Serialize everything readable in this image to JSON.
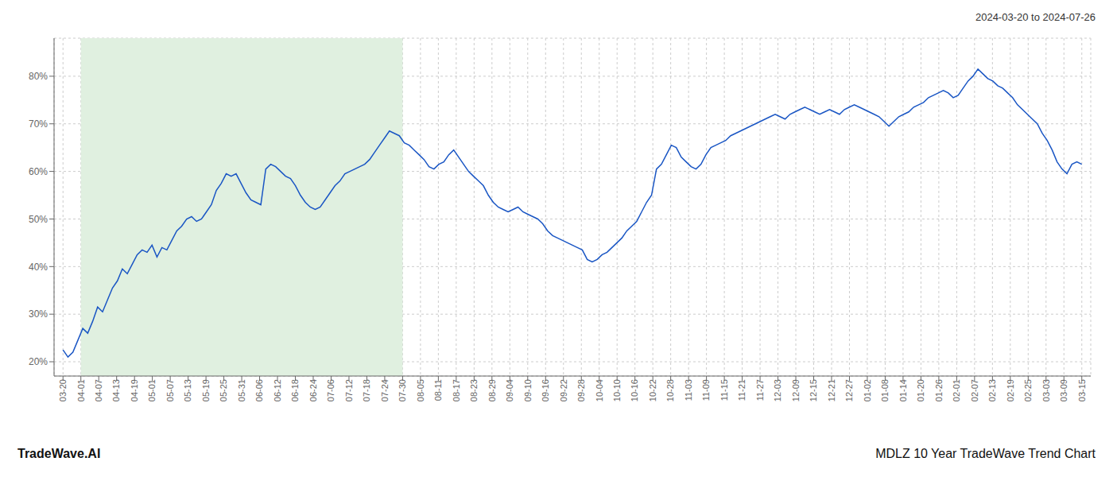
{
  "chart_data": {
    "type": "line",
    "annotations": [
      "2024-03-20 to 2024-07-26",
      "TradeWave.AI",
      "MDLZ 10 Year TradeWave Trend Chart"
    ],
    "color": "#1a56c4",
    "grid": true,
    "spans": [
      {
        "x": [
          1,
          19
        ],
        "color": "#e0f0e0"
      }
    ],
    "xlim": [
      -0.5,
      57.5
    ],
    "xticks": [
      {
        "value": 0,
        "label": "03-20"
      },
      {
        "value": 1,
        "label": "04-01"
      },
      {
        "value": 2,
        "label": "04-07"
      },
      {
        "value": 3,
        "label": "04-13"
      },
      {
        "value": 4,
        "label": "04-19"
      },
      {
        "value": 5,
        "label": "05-01"
      },
      {
        "value": 6,
        "label": "05-07"
      },
      {
        "value": 7,
        "label": "05-13"
      },
      {
        "value": 8,
        "label": "05-19"
      },
      {
        "value": 9,
        "label": "05-25"
      },
      {
        "value": 10,
        "label": "05-31"
      },
      {
        "value": 11,
        "label": "06-06"
      },
      {
        "value": 12,
        "label": "06-12"
      },
      {
        "value": 13,
        "label": "06-18"
      },
      {
        "value": 14,
        "label": "06-24"
      },
      {
        "value": 15,
        "label": "07-06"
      },
      {
        "value": 16,
        "label": "07-12"
      },
      {
        "value": 17,
        "label": "07-18"
      },
      {
        "value": 18,
        "label": "07-24"
      },
      {
        "value": 19,
        "label": "07-30"
      },
      {
        "value": 20,
        "label": "08-05"
      },
      {
        "value": 21,
        "label": "08-11"
      },
      {
        "value": 22,
        "label": "08-17"
      },
      {
        "value": 23,
        "label": "08-23"
      },
      {
        "value": 24,
        "label": "08-29"
      },
      {
        "value": 25,
        "label": "09-04"
      },
      {
        "value": 26,
        "label": "09-10"
      },
      {
        "value": 27,
        "label": "09-16"
      },
      {
        "value": 28,
        "label": "09-22"
      },
      {
        "value": 29,
        "label": "09-28"
      },
      {
        "value": 30,
        "label": "10-04"
      },
      {
        "value": 31,
        "label": "10-10"
      },
      {
        "value": 32,
        "label": "10-16"
      },
      {
        "value": 33,
        "label": "10-22"
      },
      {
        "value": 34,
        "label": "10-28"
      },
      {
        "value": 35,
        "label": "11-03"
      },
      {
        "value": 36,
        "label": "11-09"
      },
      {
        "value": 37,
        "label": "11-15"
      },
      {
        "value": 38,
        "label": "11-21"
      },
      {
        "value": 39,
        "label": "11-27"
      },
      {
        "value": 40,
        "label": "12-03"
      },
      {
        "value": 41,
        "label": "12-09"
      },
      {
        "value": 42,
        "label": "12-15"
      },
      {
        "value": 43,
        "label": "12-21"
      },
      {
        "value": 44,
        "label": "12-27"
      },
      {
        "value": 45,
        "label": "01-02"
      },
      {
        "value": 46,
        "label": "01-08"
      },
      {
        "value": 47,
        "label": "01-14"
      },
      {
        "value": 48,
        "label": "01-20"
      },
      {
        "value": 49,
        "label": "01-26"
      },
      {
        "value": 50,
        "label": "02-01"
      },
      {
        "value": 51,
        "label": "02-07"
      },
      {
        "value": 52,
        "label": "02-13"
      },
      {
        "value": 53,
        "label": "02-19"
      },
      {
        "value": 54,
        "label": "02-25"
      },
      {
        "value": 55,
        "label": "03-03"
      },
      {
        "value": 56,
        "label": "03-09"
      },
      {
        "value": 57,
        "label": "03-15"
      }
    ],
    "ylim": [
      17,
      88
    ],
    "yticks": [
      {
        "value": 20,
        "label": "20%"
      },
      {
        "value": 30,
        "label": "30%"
      },
      {
        "value": 40,
        "label": "40%"
      },
      {
        "value": 50,
        "label": "50%"
      },
      {
        "value": 60,
        "label": "60%"
      },
      {
        "value": 70,
        "label": "70%"
      },
      {
        "value": 80,
        "label": "80%"
      }
    ],
    "x": [
      0,
      0.2767,
      0.5534,
      0.8301,
      1.1068,
      1.3835,
      1.6602,
      1.9369,
      2.2136,
      2.4903,
      2.767,
      3.0437,
      3.3204,
      3.5971,
      3.8738,
      4.1505,
      4.4272,
      4.7039,
      4.9806,
      5.2573,
      5.534,
      5.8107,
      6.0874,
      6.3641,
      6.6408,
      6.9175,
      7.1942,
      7.4709,
      7.7476,
      8.0243,
      8.301,
      8.5777,
      8.8544,
      9.1311,
      9.4078,
      9.6845,
      9.9612,
      10.2379,
      10.5146,
      10.7913,
      11.068,
      11.3447,
      11.6214,
      11.8981,
      12.1748,
      12.4515,
      12.7282,
      13.0049,
      13.2816,
      13.5583,
      13.835,
      14.1117,
      14.3883,
      14.665,
      14.9417,
      15.2184,
      15.4951,
      15.7718,
      16.0485,
      16.3252,
      16.6019,
      16.8786,
      17.1553,
      17.432,
      17.7087,
      17.9854,
      18.2621,
      18.5388,
      18.8155,
      19.0922,
      19.3689,
      19.6456,
      19.9223,
      20.199,
      20.4757,
      20.7524,
      21.0291,
      21.3058,
      21.5825,
      21.8592,
      22.1359,
      22.4126,
      22.6893,
      22.966,
      23.2427,
      23.5194,
      23.7961,
      24.0728,
      24.3495,
      24.6262,
      24.9029,
      25.1796,
      25.4563,
      25.733,
      26.0097,
      26.2864,
      26.5631,
      26.8398,
      27.1165,
      27.3932,
      27.6699,
      27.9466,
      28.2233,
      28.5,
      28.7767,
      29.0534,
      29.3301,
      29.6068,
      29.8835,
      30.1602,
      30.4369,
      30.7136,
      30.9903,
      31.267,
      31.5437,
      31.8204,
      32.0971,
      32.3738,
      32.6505,
      32.9272,
      33.2039,
      33.4806,
      33.7573,
      34.034,
      34.3107,
      34.5874,
      34.8641,
      35.1408,
      35.4175,
      35.6942,
      35.9709,
      36.2476,
      36.5243,
      36.801,
      37.0777,
      37.3544,
      37.6311,
      37.9078,
      38.1845,
      38.4612,
      38.7379,
      39.0146,
      39.2913,
      39.568,
      39.8447,
      40.1214,
      40.3981,
      40.6748,
      40.9515,
      41.2282,
      41.5049,
      41.7816,
      42.0583,
      42.335,
      42.6117,
      42.8883,
      43.165,
      43.4417,
      43.7184,
      43.9951,
      44.2718,
      44.5485,
      44.8252,
      45.1019,
      45.3786,
      45.6553,
      45.932,
      46.2087,
      46.4854,
      46.7621,
      47.0388,
      47.3155,
      47.5922,
      47.8689,
      48.1456,
      48.4223,
      48.699,
      48.9757,
      49.2524,
      49.5291,
      49.8058,
      50.0825,
      50.3592,
      50.6359,
      50.9126,
      51.1893,
      51.466,
      51.7427,
      52.0194,
      52.2961,
      52.5728,
      52.8495,
      53.1262,
      53.4029,
      53.6796,
      53.9563,
      54.233,
      54.5097,
      54.7864,
      55.0631,
      55.3398,
      55.6165,
      55.8932,
      56.1699,
      56.4466,
      56.7233,
      57.0
    ],
    "values": [
      22.5,
      21.0,
      22.0,
      24.5,
      27.0,
      26.0,
      28.5,
      31.5,
      30.5,
      33.0,
      35.5,
      37.0,
      39.5,
      38.5,
      40.5,
      42.5,
      43.5,
      43.0,
      44.5,
      42.0,
      44.0,
      43.5,
      45.5,
      47.5,
      48.5,
      50.0,
      50.5,
      49.5,
      50.0,
      51.5,
      53.0,
      56.0,
      57.5,
      59.5,
      59.0,
      59.5,
      57.5,
      55.5,
      54.0,
      53.5,
      53.0,
      60.5,
      61.5,
      61.0,
      60.0,
      59.0,
      58.5,
      57.0,
      55.0,
      53.5,
      52.5,
      52.0,
      52.5,
      54.0,
      55.5,
      57.0,
      58.0,
      59.5,
      60.0,
      60.5,
      61.0,
      61.5,
      62.5,
      64.0,
      65.5,
      67.0,
      68.5,
      68.0,
      67.5,
      66.0,
      65.5,
      64.5,
      63.5,
      62.5,
      61.0,
      60.5,
      61.5,
      62.0,
      63.5,
      64.5,
      63.0,
      61.5,
      60.0,
      59.0,
      58.0,
      57.0,
      55.0,
      53.5,
      52.5,
      52.0,
      51.5,
      52.0,
      52.5,
      51.5,
      51.0,
      50.5,
      50.0,
      49.0,
      47.5,
      46.5,
      46.0,
      45.5,
      45.0,
      44.5,
      44.0,
      43.5,
      41.5,
      41.0,
      41.5,
      42.5,
      43.0,
      44.0,
      45.0,
      46.0,
      47.5,
      48.5,
      49.5,
      51.5,
      53.5,
      55.0,
      60.5,
      61.5,
      63.5,
      65.5,
      65.0,
      63.0,
      62.0,
      61.0,
      60.5,
      61.5,
      63.5,
      65.0,
      65.5,
      66.0,
      66.5,
      67.5,
      68.0,
      68.5,
      69.0,
      69.5,
      70.0,
      70.5,
      71.0,
      71.5,
      72.0,
      71.5,
      71.0,
      72.0,
      72.5,
      73.0,
      73.5,
      73.0,
      72.5,
      72.0,
      72.5,
      73.0,
      72.5,
      72.0,
      73.0,
      73.5,
      74.0,
      73.5,
      73.0,
      72.5,
      72.0,
      71.5,
      70.5,
      69.5,
      70.5,
      71.5,
      72.0,
      72.5,
      73.5,
      74.0,
      74.5,
      75.5,
      76.0,
      76.5,
      77.0,
      76.5,
      75.5,
      76.0,
      77.5,
      79.0,
      80.0,
      81.5,
      80.5,
      79.5,
      79.0,
      78.0,
      77.5,
      76.5,
      75.5,
      74.0,
      73.0,
      72.0,
      71.0,
      70.0,
      68.0,
      66.5,
      64.5,
      62.0,
      60.5,
      59.5,
      61.5,
      62.0,
      61.5
    ]
  }
}
